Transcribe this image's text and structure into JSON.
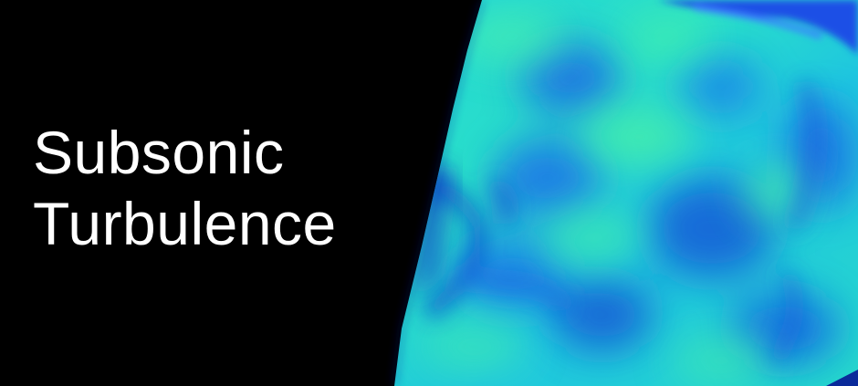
{
  "title": {
    "line1": "Subsonic",
    "line2": "Turbulence"
  }
}
